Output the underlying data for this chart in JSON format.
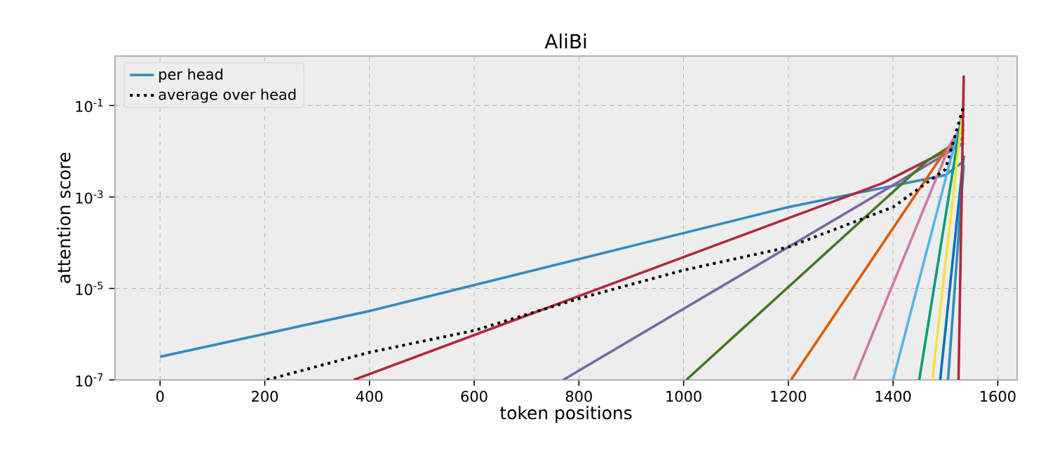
{
  "chart_data": {
    "type": "line",
    "title": "AliBi",
    "xlabel": "token positions",
    "ylabel": "attention score",
    "log": "y",
    "grid": true,
    "legend": "top left",
    "marker": "none",
    "line_style": "solid",
    "xlim": [
      -86,
      1637
    ],
    "ylim": [
      1e-07,
      1.2
    ],
    "xticks": [
      0,
      200,
      400,
      600,
      800,
      1000,
      1200,
      1400,
      1600
    ],
    "yticks": [
      {
        "value": 0.1,
        "label": "10$^{-1}$"
      },
      {
        "value": 0.001,
        "label": "10$^{-3}$"
      },
      {
        "value": 1e-05,
        "label": "10$^{-5}$"
      },
      {
        "value": 1e-07,
        "label": "10$^{-7}$"
      }
    ],
    "series": [
      {
        "name": "per head",
        "color": "#348abd",
        "x": [
          0,
          400,
          1200,
          1500,
          1535
        ],
        "values": [
          3.2e-07,
          3.2e-06,
          0.0006,
          0.003,
          0.006
        ]
      },
      {
        "color": "#b0283c",
        "x": [
          370,
          800,
          1380,
          1500,
          1535
        ],
        "values": [
          1e-07,
          6.8e-06,
          0.002,
          0.01,
          0.015
        ]
      },
      {
        "color": "#7a68a6",
        "x": [
          770,
          1464,
          1535
        ],
        "values": [
          1e-07,
          0.0049,
          0.015
        ]
      },
      {
        "color": "#467821",
        "x": [
          1005,
          1464,
          1535
        ],
        "values": [
          1e-07,
          0.006,
          0.02
        ]
      },
      {
        "color": "#d55e00",
        "x": [
          1205,
          1499,
          1535
        ],
        "values": [
          1e-07,
          0.01,
          0.03
        ]
      },
      {
        "color": "#cc79a7",
        "x": [
          1325,
          1510,
          1535
        ],
        "values": [
          1e-07,
          0.015,
          0.04
        ]
      },
      {
        "color": "#56b4e9",
        "x": [
          1400,
          1525,
          1535
        ],
        "values": [
          1e-07,
          0.03,
          0.04
        ]
      },
      {
        "color": "#009e73",
        "x": [
          1450,
          1530,
          1535
        ],
        "values": [
          1e-07,
          0.05,
          0.06
        ]
      },
      {
        "color": "#f0e442",
        "x": [
          1475,
          1532,
          1535
        ],
        "values": [
          1e-07,
          0.06,
          0.07
        ]
      },
      {
        "color": "#0072b2",
        "x": [
          1490,
          1535
        ],
        "values": [
          1e-07,
          0.008
        ]
      },
      {
        "color": "#348abd",
        "x": [
          1505,
          1535
        ],
        "values": [
          1e-07,
          0.005
        ]
      },
      {
        "color": "#b0283c",
        "x": [
          1525,
          1535
        ],
        "values": [
          1e-07,
          0.45
        ]
      },
      {
        "name": "average over head",
        "color": "#000000",
        "line_style": "dotted",
        "x": [
          204,
          400,
          600,
          800,
          1000,
          1200,
          1400,
          1500,
          1535
        ],
        "values": [
          1e-07,
          4e-07,
          1.2e-06,
          6e-06,
          2.5e-05,
          8e-05,
          0.0006,
          0.004,
          0.1
        ]
      }
    ]
  }
}
